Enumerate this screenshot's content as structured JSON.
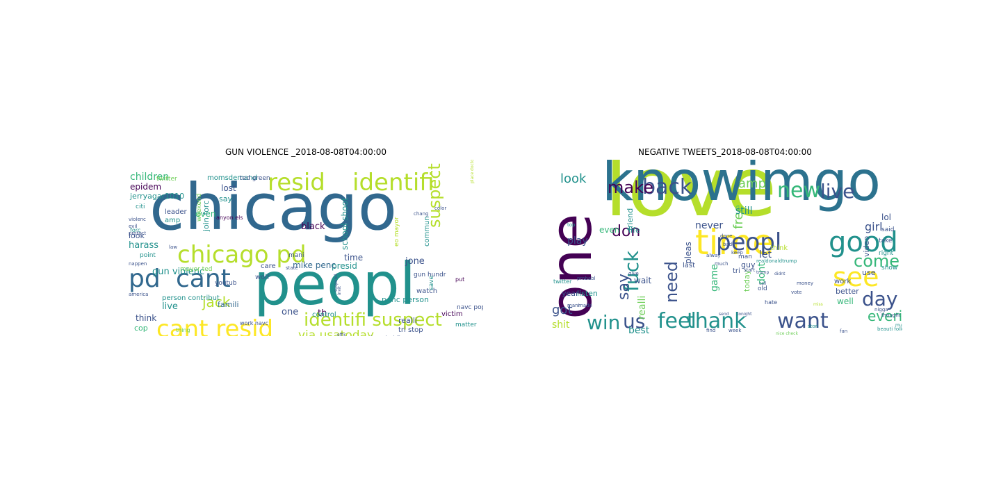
{
  "palette": {
    "purple": "#440154",
    "indigo": "#3b528b",
    "blue": "#31688e",
    "steel": "#2c728e",
    "teal": "#21918c",
    "green": "#35b779",
    "lime": "#6ece58",
    "yellowgreen": "#b5de2b",
    "yellow": "#fde725"
  },
  "clouds": [
    {
      "title": "GUN VIOLENCE _2018-08-08T04:00:00",
      "words": [
        {
          "t": "chicago",
          "s": 92,
          "c": "blue"
        },
        {
          "t": "peopl",
          "s": 84,
          "c": "teal"
        },
        {
          "t": "resid",
          "s": 34,
          "c": "yellowgreen"
        },
        {
          "t": "identifi",
          "s": 34,
          "c": "yellowgreen"
        },
        {
          "t": "chicago pd",
          "s": 34,
          "c": "yellowgreen"
        },
        {
          "t": "pd",
          "s": 36,
          "c": "blue"
        },
        {
          "t": "cant",
          "s": 36,
          "c": "blue"
        },
        {
          "t": "cant resid",
          "s": 34,
          "c": "yellow"
        },
        {
          "t": "identifi suspect",
          "s": 26,
          "c": "yellowgreen"
        },
        {
          "t": "suspect via",
          "s": 24,
          "c": "yellowgreen"
        },
        {
          "t": "jack",
          "s": 20,
          "c": "yellowgreen"
        },
        {
          "t": "via usatoday",
          "s": 17,
          "c": "yellowgreen"
        },
        {
          "t": "children",
          "s": 14,
          "c": "green"
        },
        {
          "t": "epidem",
          "s": 12,
          "c": "purple"
        },
        {
          "t": "jerryagar1010",
          "s": 11,
          "c": "teal"
        },
        {
          "t": "momsdemand",
          "s": 10,
          "c": "teal"
        },
        {
          "t": "ted green",
          "s": 9,
          "c": "indigo"
        },
        {
          "t": "lost",
          "s": 12,
          "c": "indigo"
        },
        {
          "t": "say",
          "s": 11,
          "c": "teal"
        },
        {
          "t": "black",
          "s": 13,
          "c": "purple"
        },
        {
          "t": "school shoot",
          "s": 12,
          "c": "teal"
        },
        {
          "t": "even",
          "s": 12,
          "c": "green"
        },
        {
          "t": "leader",
          "s": 10,
          "c": "indigo"
        },
        {
          "t": "amp",
          "s": 10,
          "c": "teal"
        },
        {
          "t": "weekend",
          "s": 9,
          "c": "lime"
        },
        {
          "t": "join forc",
          "s": 11,
          "c": "teal"
        },
        {
          "t": "time",
          "s": 12,
          "c": "indigo"
        },
        {
          "t": "presid",
          "s": 12,
          "c": "teal"
        },
        {
          "t": "jone",
          "s": 13,
          "c": "indigo"
        },
        {
          "t": "harass",
          "s": 13,
          "c": "teal"
        },
        {
          "t": "look",
          "s": 11,
          "c": "indigo"
        },
        {
          "t": "one",
          "s": 13,
          "c": "indigo"
        },
        {
          "t": "th",
          "s": 13,
          "c": "purple"
        },
        {
          "t": "mike penc",
          "s": 12,
          "c": "blue"
        },
        {
          "t": "penc person",
          "s": 11,
          "c": "teal"
        },
        {
          "t": "gun violenc",
          "s": 13,
          "c": "teal"
        },
        {
          "t": "live",
          "s": 13,
          "c": "teal"
        },
        {
          "t": "famili",
          "s": 11,
          "c": "blue"
        },
        {
          "t": "think",
          "s": 12,
          "c": "indigo"
        },
        {
          "t": "cop",
          "s": 11,
          "c": "green"
        },
        {
          "t": "right",
          "s": 10,
          "c": "teal"
        },
        {
          "t": "kill",
          "s": 9,
          "c": "indigo"
        },
        {
          "t": "control",
          "s": 10,
          "c": "teal"
        },
        {
          "t": "realli",
          "s": 11,
          "c": "indigo"
        },
        {
          "t": "tri stop",
          "s": 10,
          "c": "indigo"
        },
        {
          "t": "davidhogg111",
          "s": 10,
          "c": "teal"
        },
        {
          "t": "victim",
          "s": 10,
          "c": "purple"
        },
        {
          "t": "navc pop",
          "s": 9,
          "c": "indigo"
        },
        {
          "t": "watch",
          "s": 10,
          "c": "indigo"
        },
        {
          "t": "gun hundr",
          "s": 9,
          "c": "indigo"
        },
        {
          "t": "matter",
          "s": 9,
          "c": "teal"
        },
        {
          "t": "care",
          "s": 10,
          "c": "indigo"
        },
        {
          "t": "wolf",
          "s": 10,
          "c": "indigo"
        },
        {
          "t": "person contribut",
          "s": 10,
          "c": "teal"
        },
        {
          "t": "youtub",
          "s": 9,
          "c": "indigo"
        },
        {
          "t": "commun",
          "s": 10,
          "c": "teal"
        },
        {
          "t": "twitter",
          "s": 9,
          "c": "lime"
        },
        {
          "t": "citi",
          "s": 9,
          "c": "teal"
        },
        {
          "t": "mayor ted",
          "s": 9,
          "c": "lime"
        },
        {
          "t": "mani",
          "s": 9,
          "c": "indigo"
        },
        {
          "t": "point",
          "s": 9,
          "c": "teal"
        },
        {
          "t": "thing",
          "s": 8,
          "c": "lime"
        },
        {
          "t": "vom work",
          "s": 8,
          "c": "indigo"
        },
        {
          "t": "work navc",
          "s": 8,
          "c": "indigo"
        },
        {
          "t": "pop street",
          "s": 8,
          "c": "indigo"
        },
        {
          "t": "street doctor",
          "s": 7,
          "c": "teal"
        },
        {
          "t": "save",
          "s": 9,
          "c": "teal"
        },
        {
          "t": "put",
          "s": 8,
          "c": "purple"
        },
        {
          "t": "eo mayor",
          "s": 9,
          "c": "yellowgreen"
        },
        {
          "t": "anyon els",
          "s": 8,
          "c": "purple"
        },
        {
          "t": "evil",
          "s": 7,
          "c": "indigo"
        },
        {
          "t": "protect",
          "s": 7,
          "c": "indigo"
        },
        {
          "t": "nappen",
          "s": 7,
          "c": "indigo"
        },
        {
          "t": "violenc",
          "s": 7,
          "c": "indigo"
        },
        {
          "t": "forc",
          "s": 8,
          "c": "teal"
        },
        {
          "t": "chang",
          "s": 7,
          "c": "indigo"
        },
        {
          "t": "color",
          "s": 7,
          "c": "indigo"
        },
        {
          "t": "state",
          "s": 7,
          "c": "indigo"
        },
        {
          "t": "law",
          "s": 7,
          "c": "indigo"
        },
        {
          "t": "america",
          "s": 7,
          "c": "indigo"
        },
        {
          "t": "suspend",
          "s": 6,
          "c": "indigo"
        },
        {
          "t": "invit",
          "s": 6,
          "c": "indigo"
        },
        {
          "t": "diamondandsilk",
          "s": 6,
          "c": "indigo"
        },
        {
          "t": "offic",
          "s": 6,
          "c": "indigo"
        },
        {
          "t": "place doctor anyon",
          "s": 6,
          "c": "yellowgreen"
        }
      ]
    },
    {
      "title": "NEGATIVE TWEETS_2018-08-08T04:00:00",
      "words": [
        {
          "t": "love",
          "s": 118,
          "c": "yellowgreen"
        },
        {
          "t": "one",
          "s": 82,
          "c": "purple"
        },
        {
          "t": "knowimgo",
          "s": 78,
          "c": "steel"
        },
        {
          "t": "time",
          "s": 50,
          "c": "yellow"
        },
        {
          "t": "peopl",
          "s": 34,
          "c": "indigo"
        },
        {
          "t": "good",
          "s": 40,
          "c": "teal"
        },
        {
          "t": "see",
          "s": 38,
          "c": "yellow"
        },
        {
          "t": "back",
          "s": 30,
          "c": "indigo"
        },
        {
          "t": "make",
          "s": 24,
          "c": "purple"
        },
        {
          "t": "new",
          "s": 30,
          "c": "green"
        },
        {
          "t": "live",
          "s": 28,
          "c": "indigo"
        },
        {
          "t": "amp",
          "s": 18,
          "c": "lime"
        },
        {
          "t": "fuck",
          "s": 28,
          "c": "teal"
        },
        {
          "t": "say",
          "s": 22,
          "c": "indigo"
        },
        {
          "t": "don",
          "s": 22,
          "c": "purple"
        },
        {
          "t": "come",
          "s": 24,
          "c": "green"
        },
        {
          "t": "day",
          "s": 28,
          "c": "indigo"
        },
        {
          "t": "win",
          "s": 28,
          "c": "teal"
        },
        {
          "t": "us",
          "s": 28,
          "c": "indigo"
        },
        {
          "t": "feel",
          "s": 30,
          "c": "teal"
        },
        {
          "t": "thank",
          "s": 30,
          "c": "teal"
        },
        {
          "t": "want",
          "s": 30,
          "c": "indigo"
        },
        {
          "t": "everi",
          "s": 20,
          "c": "green"
        },
        {
          "t": "need",
          "s": 24,
          "c": "indigo"
        },
        {
          "t": "realli",
          "s": 14,
          "c": "lime"
        },
        {
          "t": "look",
          "s": 18,
          "c": "teal"
        },
        {
          "t": "free",
          "s": 18,
          "c": "lime"
        },
        {
          "t": "still",
          "s": 14,
          "c": "teal"
        },
        {
          "t": "never",
          "s": 14,
          "c": "indigo"
        },
        {
          "t": "girl",
          "s": 16,
          "c": "indigo"
        },
        {
          "t": "lol",
          "s": 12,
          "c": "indigo"
        },
        {
          "t": "play",
          "s": 14,
          "c": "indigo"
        },
        {
          "t": "even",
          "s": 12,
          "c": "green"
        },
        {
          "t": "life",
          "s": 11,
          "c": "teal"
        },
        {
          "t": "friend",
          "s": 11,
          "c": "teal"
        },
        {
          "t": "pleas",
          "s": 12,
          "c": "indigo"
        },
        {
          "t": "let",
          "s": 14,
          "c": "indigo"
        },
        {
          "t": "dont",
          "s": 14,
          "c": "green"
        },
        {
          "t": "video",
          "s": 11,
          "c": "indigo"
        },
        {
          "t": "got",
          "s": 18,
          "c": "indigo"
        },
        {
          "t": "shit",
          "s": 14,
          "c": "yellowgreen"
        },
        {
          "t": "best",
          "s": 14,
          "c": "teal"
        },
        {
          "t": "listen",
          "s": 11,
          "c": "teal"
        },
        {
          "t": "game",
          "s": 14,
          "c": "green"
        },
        {
          "t": "wait",
          "s": 12,
          "c": "indigo"
        },
        {
          "t": "guy",
          "s": 11,
          "c": "indigo"
        },
        {
          "t": "today",
          "s": 11,
          "c": "lime"
        },
        {
          "t": "well",
          "s": 12,
          "c": "green"
        },
        {
          "t": "better",
          "s": 11,
          "c": "indigo"
        },
        {
          "t": "work",
          "s": 10,
          "c": "indigo"
        },
        {
          "t": "use",
          "s": 11,
          "c": "indigo"
        },
        {
          "t": "year",
          "s": 11,
          "c": "indigo"
        },
        {
          "t": "think",
          "s": 10,
          "c": "yellowgreen"
        },
        {
          "t": "said",
          "s": 9,
          "c": "indigo"
        },
        {
          "t": "take",
          "s": 9,
          "c": "indigo"
        },
        {
          "t": "right",
          "s": 9,
          "c": "teal"
        },
        {
          "t": "show",
          "s": 9,
          "c": "teal"
        },
        {
          "t": "twitter",
          "s": 8,
          "c": "teal"
        },
        {
          "t": "last",
          "s": 10,
          "c": "indigo"
        },
        {
          "t": "man",
          "s": 9,
          "c": "indigo"
        },
        {
          "t": "tri",
          "s": 10,
          "c": "indigo"
        },
        {
          "t": "old",
          "s": 9,
          "c": "indigo"
        },
        {
          "t": "probabl",
          "s": 7,
          "c": "indigo"
        },
        {
          "t": "money",
          "s": 7,
          "c": "indigo"
        },
        {
          "t": "vote",
          "s": 7,
          "c": "indigo"
        },
        {
          "t": "realdonaldtrump",
          "s": 7,
          "c": "teal"
        },
        {
          "t": "hate",
          "s": 8,
          "c": "indigo"
        },
        {
          "t": "fan",
          "s": 7,
          "c": "indigo"
        },
        {
          "t": "nigga",
          "s": 7,
          "c": "indigo"
        },
        {
          "t": "beauti follow",
          "s": 7,
          "c": "teal"
        },
        {
          "t": "thought",
          "s": 7,
          "c": "indigo"
        },
        {
          "t": "music",
          "s": 6,
          "c": "teal"
        },
        {
          "t": "find",
          "s": 7,
          "c": "indigo"
        },
        {
          "t": "week",
          "s": 7,
          "c": "indigo"
        },
        {
          "t": "nice check",
          "s": 6,
          "c": "lime"
        },
        {
          "t": "stori",
          "s": 7,
          "c": "teal"
        },
        {
          "t": "mani",
          "s": 7,
          "c": "indigo"
        },
        {
          "t": "made",
          "s": 7,
          "c": "indigo"
        },
        {
          "t": "bad",
          "s": 7,
          "c": "indigo"
        },
        {
          "t": "done",
          "s": 7,
          "c": "indigo"
        },
        {
          "t": "start",
          "s": 7,
          "c": "indigo"
        },
        {
          "t": "give",
          "s": 7,
          "c": "indigo"
        },
        {
          "t": "trump",
          "s": 6,
          "c": "indigo"
        },
        {
          "t": "send",
          "s": 6,
          "c": "indigo"
        },
        {
          "t": "tonight",
          "s": 6,
          "c": "indigo"
        },
        {
          "t": "miss",
          "s": 6,
          "c": "yellowgreen"
        },
        {
          "t": "top",
          "s": 7,
          "c": "teal"
        },
        {
          "t": "alway",
          "s": 7,
          "c": "indigo"
        },
        {
          "t": "much",
          "s": 7,
          "c": "indigo"
        },
        {
          "t": "keep",
          "s": 7,
          "c": "indigo"
        },
        {
          "t": "call",
          "s": 6,
          "c": "indigo"
        },
        {
          "t": "didnt",
          "s": 6,
          "c": "indigo"
        }
      ]
    }
  ]
}
